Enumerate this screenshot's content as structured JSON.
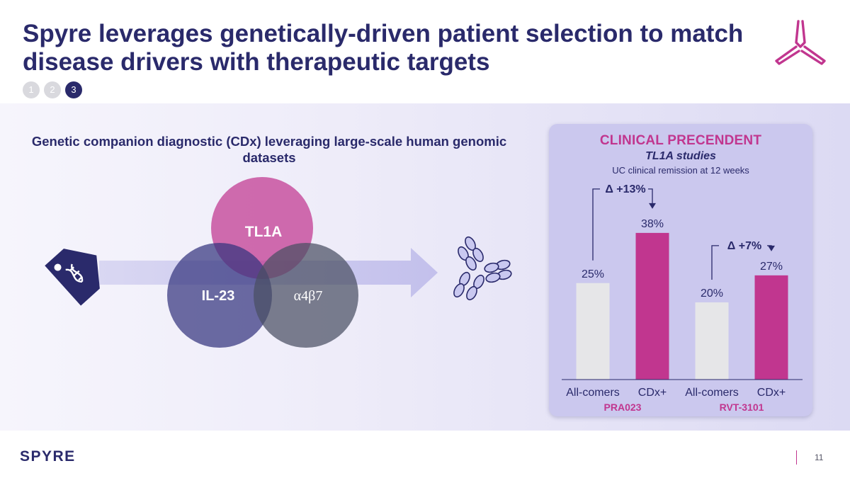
{
  "slide": {
    "title": "Spyre leverages genetically-driven patient selection to match disease drivers with therapeutic targets",
    "steps": [
      "1",
      "2",
      "3"
    ],
    "active_step": "3",
    "page_number": "11",
    "footer_logo": "SPYRE"
  },
  "left": {
    "heading": "Genetic companion diagnostic (CDx) leveraging large-scale human genomic datasets",
    "circles": [
      {
        "label": "TL1A",
        "color": "#c1368f"
      },
      {
        "label": "IL-23",
        "color": "#3c3c86"
      },
      {
        "label": "α4β7",
        "color": "#4d5266"
      }
    ]
  },
  "panel": {
    "title": "CLINICAL PRECENDENT",
    "subtitle": "TL1A studies",
    "note": "UC clinical remission at 12 weeks"
  },
  "chart_data": {
    "type": "bar",
    "categories": [
      "All-comers",
      "CDx+",
      "All-comers",
      "CDx+"
    ],
    "values": [
      25,
      38,
      20,
      27
    ],
    "value_labels": [
      "25%",
      "38%",
      "20%",
      "27%"
    ],
    "bar_colors": [
      "#e6e6e8",
      "#c1368f",
      "#e6e6e8",
      "#c1368f"
    ],
    "groups": [
      "PRA023",
      "RVT-3101"
    ],
    "deltas": [
      "Δ +13%",
      "Δ +7%"
    ],
    "ylim": [
      0,
      40
    ],
    "title": "UC clinical remission at 12 weeks"
  },
  "colors": {
    "navy": "#2a2a6b",
    "magenta": "#c1368f"
  }
}
